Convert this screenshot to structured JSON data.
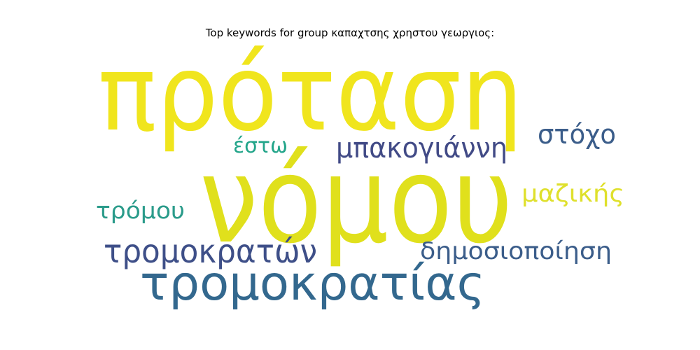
{
  "chart_data": {
    "type": "wordcloud",
    "title": "Top keywords for group καπαχτσης χρηστου γεωργιος:",
    "words": [
      {
        "text": "πρόταση",
        "color": "#f0e51d"
      },
      {
        "text": "νόμου",
        "color": "#e0e01c"
      },
      {
        "text": "τρομοκρατίας",
        "color": "#33688e"
      },
      {
        "text": "μπακογιάννη",
        "color": "#414a86"
      },
      {
        "text": "στόχο",
        "color": "#3b5d8a"
      },
      {
        "text": "τρομοκρατών",
        "color": "#3e4f88"
      },
      {
        "text": "δημοσιοποίηση",
        "color": "#3b5d8a"
      },
      {
        "text": "μαζικής",
        "color": "#dfe02c"
      },
      {
        "text": "τρόμου",
        "color": "#2a9b8a"
      },
      {
        "text": "έστω",
        "color": "#23a58a"
      }
    ]
  }
}
